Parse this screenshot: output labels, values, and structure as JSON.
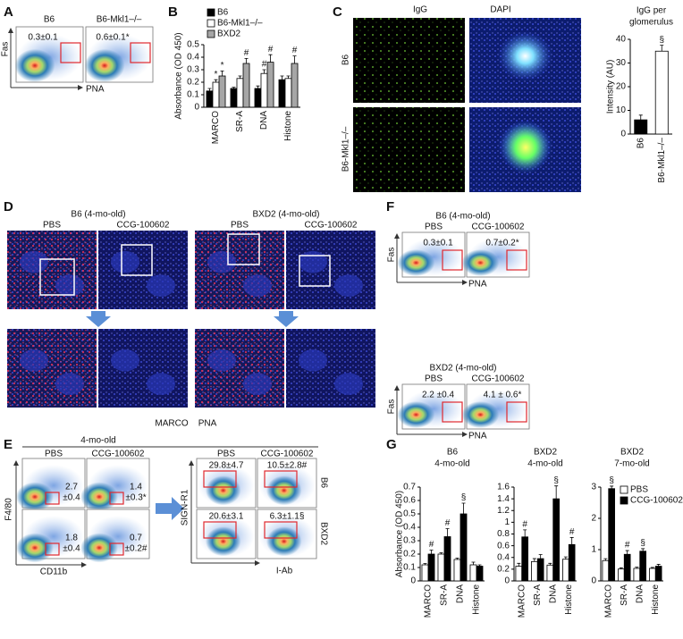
{
  "panels": {
    "A": {
      "letter": "A",
      "labels": [
        "B6",
        "B6-Mkl1–/–"
      ],
      "stats": [
        "0.3±0.1",
        "0.6±0.1*"
      ],
      "y_axis": "Fas",
      "x_axis": "PNA"
    },
    "B": {
      "letter": "B"
    },
    "C": {
      "letter": "C",
      "channels": [
        "IgG",
        "DAPI"
      ],
      "rows": [
        "B6",
        "B6-Mkl1–/–"
      ]
    },
    "D": {
      "letter": "D",
      "groups": [
        "B6 (4-mo-old)",
        "BXD2 (4-mo-old)"
      ],
      "treatments": [
        "PBS",
        "CCG-100602",
        "PBS",
        "CCG-100602"
      ],
      "stains": [
        "MARCO",
        "PNA"
      ]
    },
    "E": {
      "letter": "E",
      "header": "4-mo-old",
      "columns": [
        "PBS",
        "CCG-100602"
      ],
      "left_stats": [
        [
          "2.7",
          "±0.4"
        ],
        [
          "1.4",
          "±0.3*"
        ],
        [
          "1.8",
          "±0.4"
        ],
        [
          "0.7",
          "±0.2#"
        ]
      ],
      "left_y": "F4/80",
      "left_x": "CD11b",
      "right_columns": [
        "PBS",
        "CCG-100602"
      ],
      "right_stats": [
        "29.8±4.7",
        "10.5±2.8#",
        "20.6±3.1",
        "6.3±1.1§"
      ],
      "right_y": "SIGN-R1",
      "right_x": "I-Ab",
      "rows": [
        "B6",
        "BXD2"
      ]
    },
    "F": {
      "letter": "F",
      "blocks": [
        {
          "header": "B6 (4-mo-old)",
          "columns": [
            "PBS",
            "CCG-100602"
          ],
          "stats": [
            "0.3±0.1",
            "0.7±0.2*"
          ],
          "y_axis": "Fas",
          "x_axis": "PNA"
        },
        {
          "header": "BXD2 (4-mo-old)",
          "columns": [
            "PBS",
            "CCG-100602"
          ],
          "stats": [
            "2.2 ±0.4",
            "4.1 ± 0.6*"
          ],
          "y_axis": "Fas",
          "x_axis": "PNA"
        }
      ]
    },
    "G": {
      "letter": "G"
    }
  },
  "chart_data": [
    {
      "type": "bar",
      "ylabel": "Absorbance (OD 450)",
      "categories": [
        "MARCO",
        "SR-A",
        "DNA",
        "Histone"
      ],
      "ylim": [
        0,
        0.5
      ],
      "yticks": [
        0,
        0.1,
        0.2,
        0.3,
        0.4,
        0.5
      ],
      "legend": "top",
      "series": [
        {
          "name": "B6",
          "color": "#000000",
          "values": [
            0.13,
            0.15,
            0.15,
            0.22
          ],
          "errors": [
            0.02,
            0.01,
            0.02,
            0.03
          ],
          "annotations": [
            null,
            null,
            null,
            null
          ]
        },
        {
          "name": "B6-Mkl1–/–",
          "color": "#ffffff",
          "values": [
            0.2,
            0.23,
            0.27,
            0.23
          ],
          "errors": [
            0.02,
            0.02,
            0.03,
            0.02
          ],
          "annotations": [
            "*",
            null,
            "#",
            null
          ]
        },
        {
          "name": "BXD2",
          "color": "#a6a6a6",
          "values": [
            0.25,
            0.35,
            0.36,
            0.35
          ],
          "errors": [
            0.04,
            0.04,
            0.06,
            0.06
          ],
          "annotations": [
            "*",
            "#",
            "#",
            "#"
          ]
        }
      ]
    },
    {
      "type": "bar",
      "title": [
        "IgG per",
        "glomerulus"
      ],
      "ylabel": "Intensity (AU)",
      "categories": [
        "B6",
        "B6-Mkl1–/–"
      ],
      "ylim": [
        0,
        40
      ],
      "yticks": [
        0,
        10,
        20,
        30,
        40
      ],
      "values": [
        6,
        35
      ],
      "errors": [
        2,
        2.5
      ],
      "colors": [
        "#000000",
        "#ffffff"
      ],
      "annotations": [
        null,
        "§"
      ]
    },
    {
      "type": "bar",
      "title": [
        "B6",
        "4-mo-old"
      ],
      "ylabel": "Absorbance (OD 450)",
      "categories": [
        "MARCO",
        "SR-A",
        "DNA",
        "Histone"
      ],
      "ylim": [
        0,
        0.7
      ],
      "yticks": [
        0,
        0.1,
        0.2,
        0.3,
        0.4,
        0.5,
        0.6,
        0.7
      ],
      "series": [
        {
          "color": "#ffffff",
          "values": [
            0.12,
            0.2,
            0.16,
            0.12
          ],
          "errors": [
            0.01,
            0.01,
            0.01,
            0.02
          ],
          "annotations": [
            null,
            null,
            null,
            null
          ]
        },
        {
          "color": "#000000",
          "values": [
            0.2,
            0.33,
            0.5,
            0.11
          ],
          "errors": [
            0.03,
            0.06,
            0.08,
            0.01
          ],
          "annotations": [
            "#",
            "#",
            "§",
            null
          ]
        }
      ]
    },
    {
      "type": "bar",
      "title": [
        "BXD2",
        "4-mo-old"
      ],
      "categories": [
        "MARCO",
        "SR-A",
        "DNA",
        "Histone"
      ],
      "ylim": [
        0,
        1.6
      ],
      "yticks": [
        0,
        0.2,
        0.4,
        0.6,
        0.8,
        1.0,
        1.2,
        1.4,
        1.6
      ],
      "series": [
        {
          "color": "#ffffff",
          "values": [
            0.25,
            0.33,
            0.27,
            0.37
          ],
          "errors": [
            0.05,
            0.05,
            0.03,
            0.04
          ],
          "annotations": [
            null,
            null,
            null,
            null
          ]
        },
        {
          "color": "#000000",
          "values": [
            0.75,
            0.38,
            1.4,
            0.62
          ],
          "errors": [
            0.12,
            0.07,
            0.22,
            0.12
          ],
          "annotations": [
            "#",
            null,
            "§",
            "#"
          ]
        }
      ]
    },
    {
      "type": "bar",
      "title": [
        "BXD2",
        "7-mo-old"
      ],
      "categories": [
        "MARCO",
        "SR-A",
        "DNA",
        "Histone"
      ],
      "ylim": [
        0,
        3
      ],
      "yticks": [
        0,
        1,
        2,
        3
      ],
      "legend": "upper right",
      "series": [
        {
          "name": "PBS",
          "color": "#ffffff",
          "values": [
            0.65,
            0.38,
            0.4,
            0.4
          ],
          "errors": [
            0.06,
            0.04,
            0.04,
            0.03
          ],
          "annotations": [
            null,
            null,
            null,
            null
          ]
        },
        {
          "name": "CCG-100602",
          "color": "#000000",
          "values": [
            2.95,
            0.85,
            0.95,
            0.47
          ],
          "errors": [
            0.08,
            0.12,
            0.08,
            0.06
          ],
          "annotations": [
            "§",
            "#",
            "§",
            null
          ]
        }
      ]
    }
  ]
}
